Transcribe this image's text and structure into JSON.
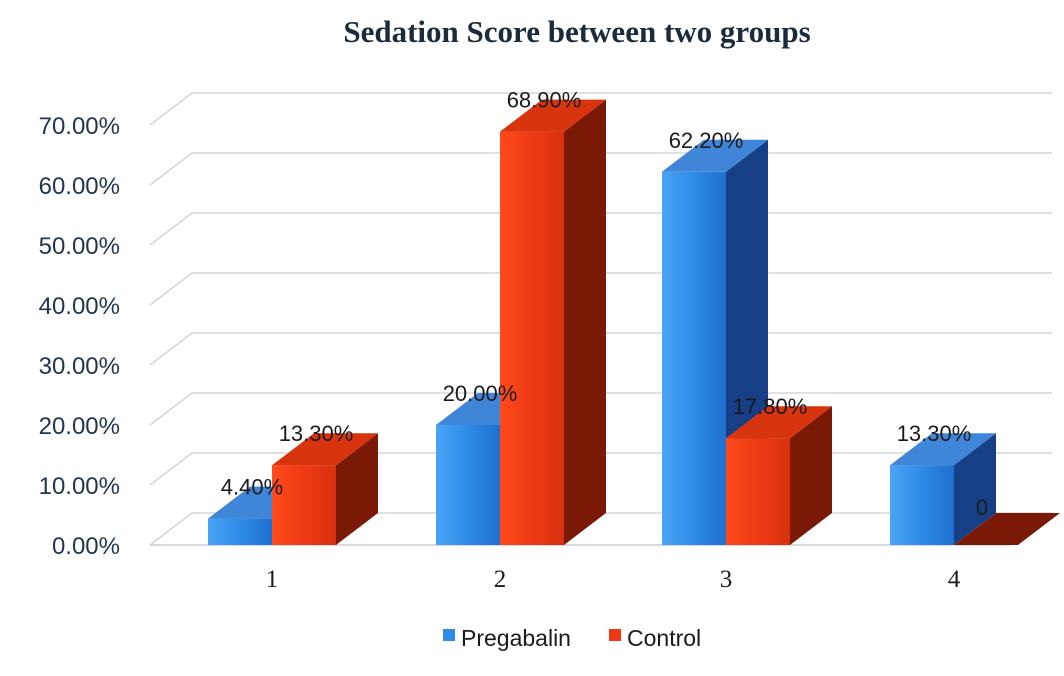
{
  "chart_data": {
    "type": "bar",
    "title": "Sedation Score between two groups",
    "xlabel": "",
    "ylabel": "",
    "categories": [
      "1",
      "2",
      "3",
      "4"
    ],
    "ylim": [
      0,
      0.7
    ],
    "yticks": [
      0,
      0.1,
      0.2,
      0.3,
      0.4,
      0.5,
      0.6,
      0.7
    ],
    "ytick_labels": [
      "0.00%",
      "10.00%",
      "20.00%",
      "30.00%",
      "40.00%",
      "50.00%",
      "60.00%",
      "70.00%"
    ],
    "grid": true,
    "style": "3d",
    "legend_position": "bottom",
    "series": [
      {
        "name": "Pregabalin",
        "color": "#2f8be6",
        "values": [
          0.044,
          0.2,
          0.622,
          0.133
        ],
        "labels": [
          "4.40%",
          "20.00%",
          "62.20%",
          "13.30%"
        ]
      },
      {
        "name": "Control",
        "color": "#ee3a14",
        "values": [
          0.133,
          0.689,
          0.178,
          0
        ],
        "labels": [
          "13.30%",
          "68.90%",
          "17.80%",
          "0"
        ]
      }
    ]
  }
}
